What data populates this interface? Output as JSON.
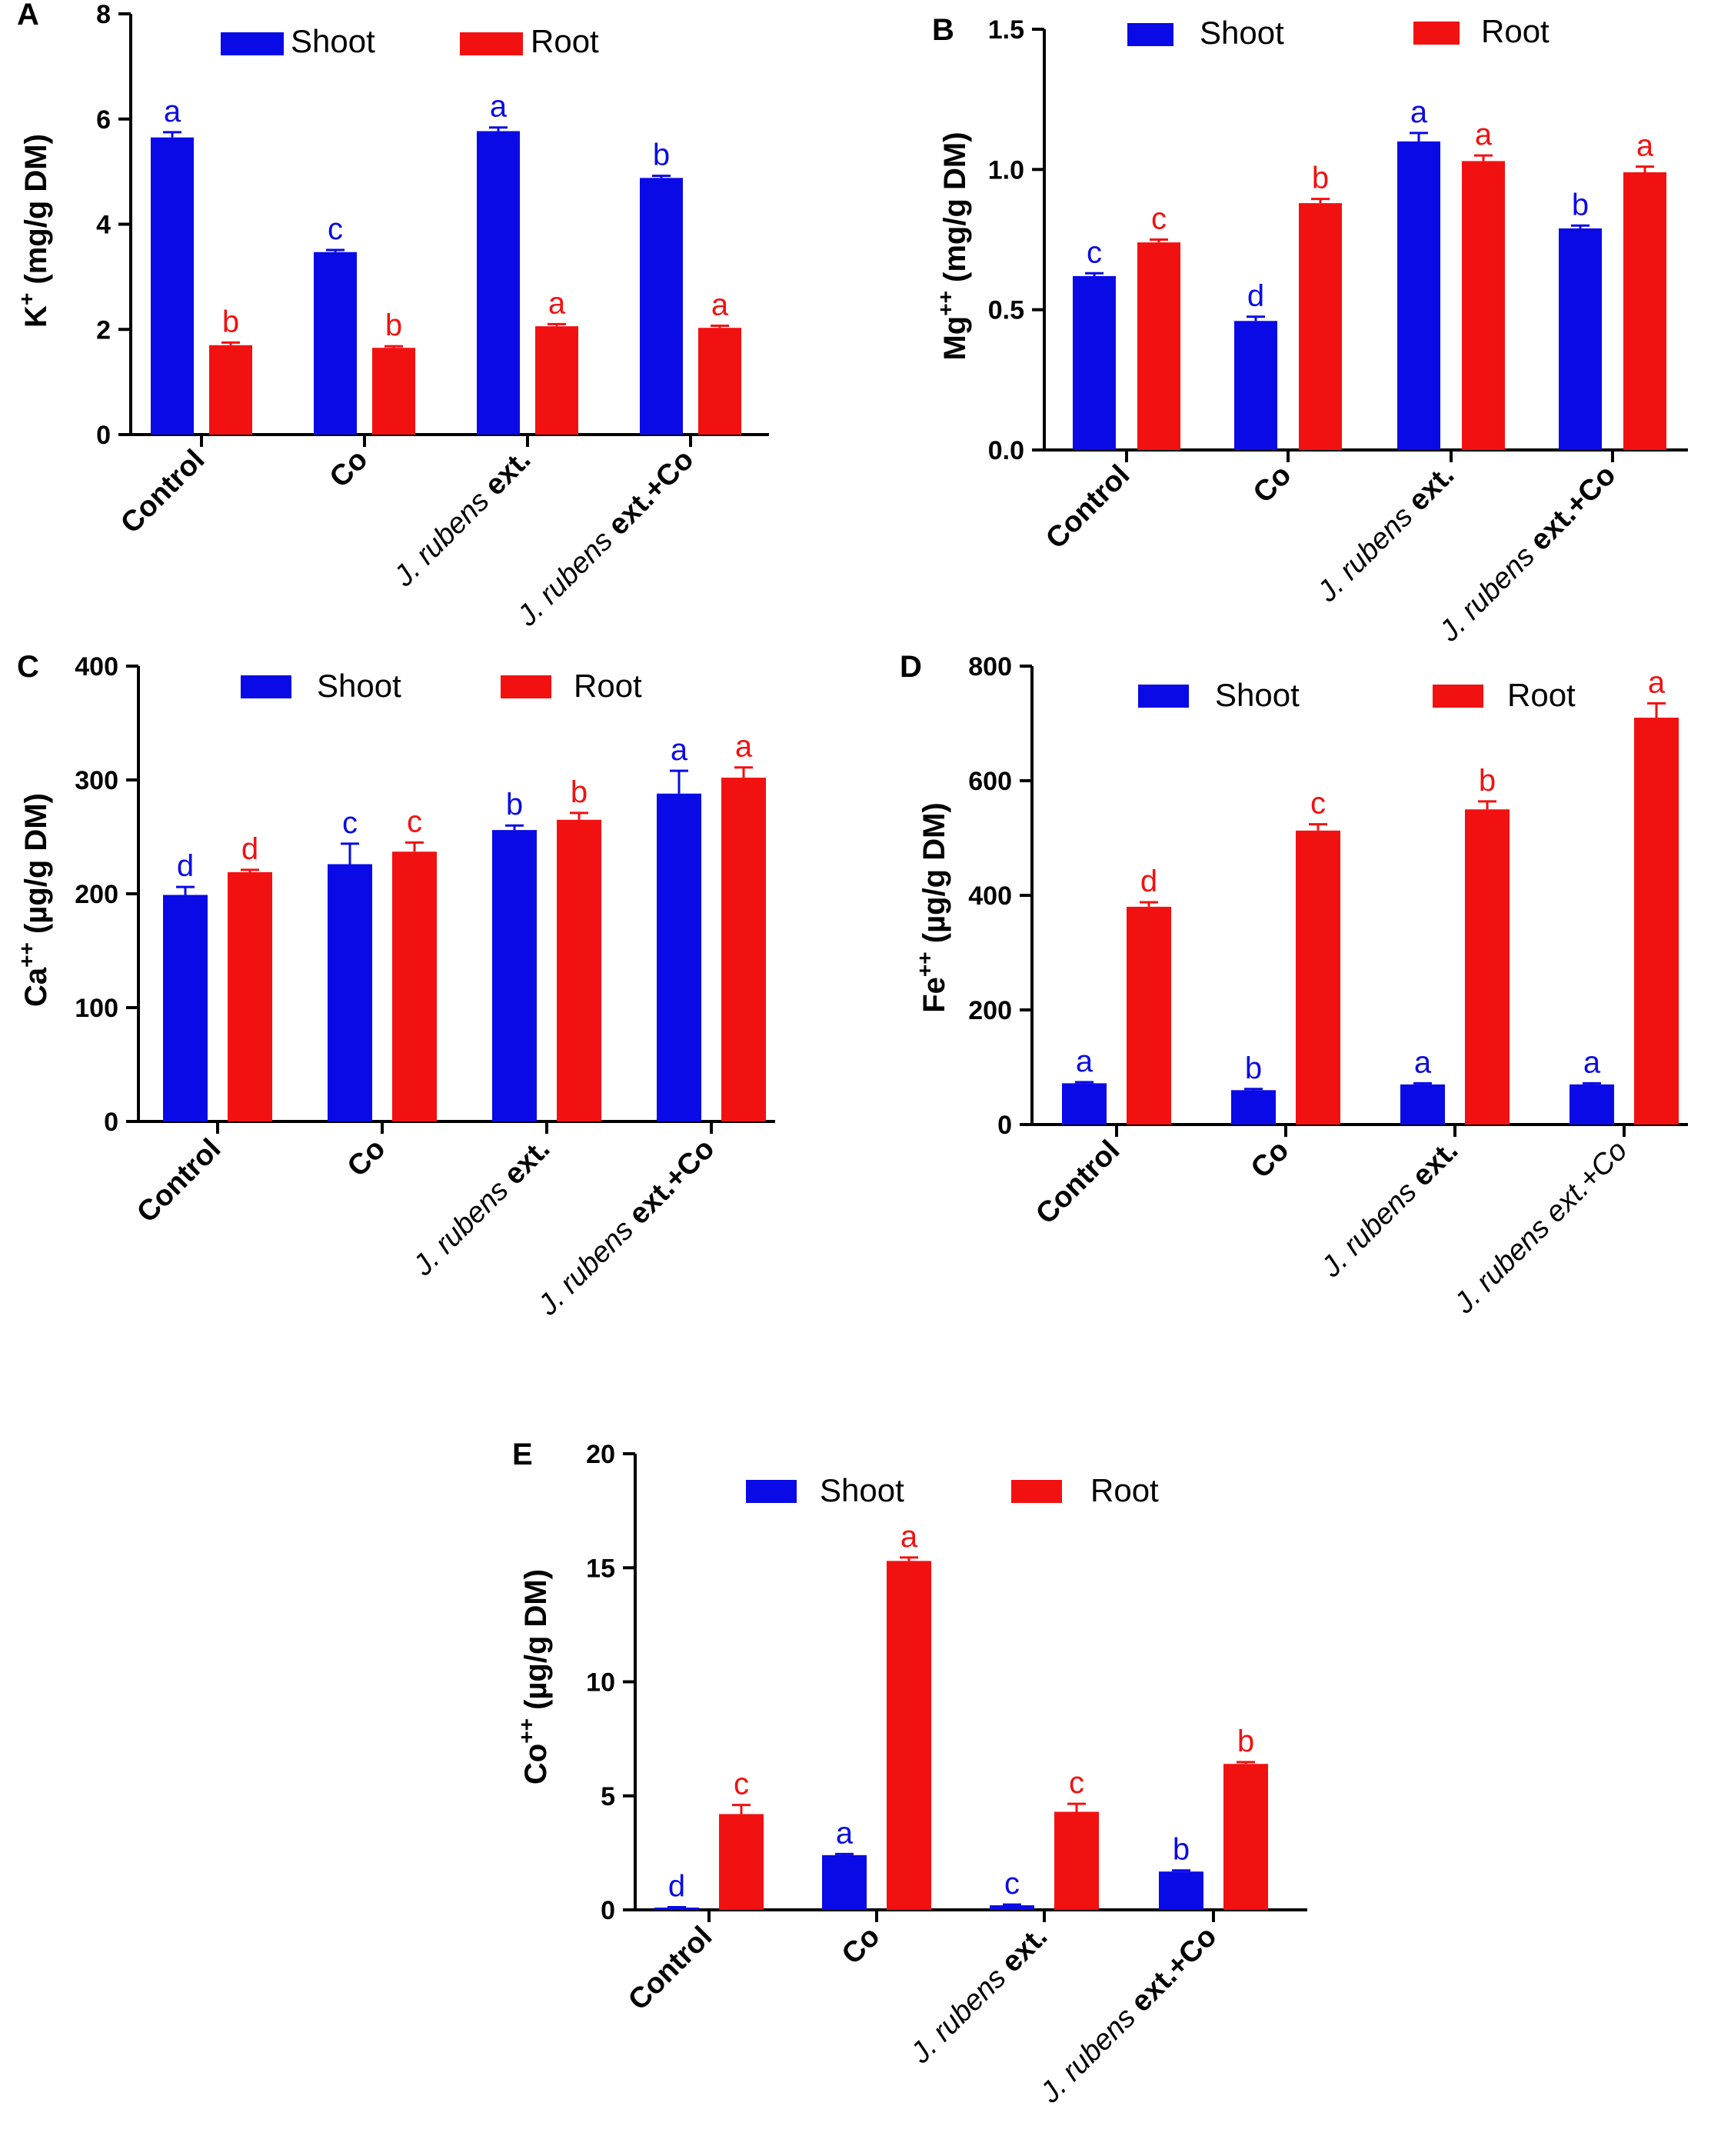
{
  "colors": {
    "shoot": "#0a0ae6",
    "root": "#f21111"
  },
  "legend": {
    "shoot": "Shoot",
    "root": "Root"
  },
  "chart_data": [
    {
      "panel": "A",
      "type": "bar",
      "ylabel_main": "K",
      "ylabel_sup": "+",
      "ylabel_unit": " (mg/g DM)",
      "ylim": [
        0,
        8
      ],
      "ticks": [
        "0",
        "2",
        "4",
        "6",
        "8"
      ],
      "tick_values": [
        0,
        2,
        4,
        6,
        8
      ],
      "categories": [
        {
          "italic": "",
          "bold": "Control"
        },
        {
          "italic": "",
          "bold": "Co"
        },
        {
          "italic": "J. rubens ",
          "bold": "ext."
        },
        {
          "italic": "J. rubens ",
          "bold": "ext.+Co"
        }
      ],
      "series": [
        {
          "name": "Shoot",
          "values": [
            5.65,
            3.47,
            5.77,
            4.88
          ],
          "errors": [
            0.1,
            0.04,
            0.07,
            0.04
          ],
          "letters": [
            "a",
            "c",
            "a",
            "b"
          ]
        },
        {
          "name": "Root",
          "values": [
            1.7,
            1.65,
            2.06,
            2.03
          ],
          "errors": [
            0.05,
            0.03,
            0.04,
            0.04
          ],
          "letters": [
            "b",
            "b",
            "a",
            "a"
          ]
        }
      ]
    },
    {
      "panel": "B",
      "type": "bar",
      "ylabel_main": "Mg",
      "ylabel_sup": "++",
      "ylabel_unit": " (mg/g DM)",
      "ylim": [
        0,
        1.5
      ],
      "ticks": [
        "0.0",
        "0.5",
        "1.0",
        "1.5"
      ],
      "tick_values": [
        0,
        0.5,
        1.0,
        1.5
      ],
      "categories": [
        {
          "italic": "",
          "bold": "Control"
        },
        {
          "italic": "",
          "bold": "Co"
        },
        {
          "italic": "J. rubens ",
          "bold": "ext."
        },
        {
          "italic": "J. rubens ",
          "bold": "ext.+Co"
        }
      ],
      "series": [
        {
          "name": "Shoot",
          "values": [
            0.62,
            0.46,
            1.1,
            0.79
          ],
          "errors": [
            0.01,
            0.015,
            0.03,
            0.01
          ],
          "letters": [
            "c",
            "d",
            "a",
            "b"
          ]
        },
        {
          "name": "Root",
          "values": [
            0.74,
            0.88,
            1.03,
            0.99
          ],
          "errors": [
            0.01,
            0.015,
            0.02,
            0.02
          ],
          "letters": [
            "c",
            "b",
            "a",
            "a"
          ]
        }
      ]
    },
    {
      "panel": "C",
      "type": "bar",
      "ylabel_main": "Ca",
      "ylabel_sup": "++",
      "ylabel_unit": " (µg/g DM)",
      "ylim": [
        0,
        400
      ],
      "ticks": [
        "0",
        "100",
        "200",
        "300",
        "400"
      ],
      "tick_values": [
        0,
        100,
        200,
        300,
        400
      ],
      "categories": [
        {
          "italic": "",
          "bold": "Control"
        },
        {
          "italic": "",
          "bold": "Co"
        },
        {
          "italic": "J. rubens ",
          "bold": "ext."
        },
        {
          "italic": "J. rubens ",
          "bold": "ext.+Co"
        }
      ],
      "series": [
        {
          "name": "Shoot",
          "values": [
            199,
            226,
            256,
            288
          ],
          "errors": [
            7,
            18,
            4,
            20
          ],
          "letters": [
            "d",
            "c",
            "b",
            "a"
          ]
        },
        {
          "name": "Root",
          "values": [
            219,
            237,
            265,
            302
          ],
          "errors": [
            2,
            8,
            6,
            9
          ],
          "letters": [
            "d",
            "c",
            "b",
            "a"
          ]
        }
      ]
    },
    {
      "panel": "D",
      "type": "bar",
      "ylabel_main": "Fe",
      "ylabel_sup": "++",
      "ylabel_unit": " (µg/g DM)",
      "ylim": [
        0,
        800
      ],
      "ticks": [
        "0",
        "200",
        "400",
        "600",
        "800"
      ],
      "tick_values": [
        0,
        200,
        400,
        600,
        800
      ],
      "categories": [
        {
          "italic": "",
          "bold": "Control"
        },
        {
          "italic": "",
          "bold": "Co"
        },
        {
          "italic": "J. rubens ",
          "bold": "ext."
        },
        {
          "italic": "J. rubens ext.+Co",
          "bold": ""
        }
      ],
      "series": [
        {
          "name": "Shoot",
          "values": [
            72,
            60,
            70,
            70
          ],
          "errors": [
            2,
            2,
            2,
            2
          ],
          "letters": [
            "a",
            "b",
            "a",
            "a"
          ]
        },
        {
          "name": "Root",
          "values": [
            380,
            513,
            550,
            710
          ],
          "errors": [
            8,
            11,
            14,
            25
          ],
          "letters": [
            "d",
            "c",
            "b",
            "a"
          ]
        }
      ]
    },
    {
      "panel": "E",
      "type": "bar",
      "ylabel_main": "Co",
      "ylabel_sup": "++",
      "ylabel_unit": " (µg/g DM)",
      "ylim": [
        0,
        20
      ],
      "ticks": [
        "0",
        "5",
        "10",
        "15",
        "20"
      ],
      "tick_values": [
        0,
        5,
        10,
        15,
        20
      ],
      "categories": [
        {
          "italic": "",
          "bold": "Control"
        },
        {
          "italic": "",
          "bold": "Co"
        },
        {
          "italic": "J. rubens ",
          "bold": "ext."
        },
        {
          "italic": "J. rubens ",
          "bold": "ext.+Co"
        }
      ],
      "series": [
        {
          "name": "Shoot",
          "values": [
            0.1,
            2.4,
            0.2,
            1.68
          ],
          "errors": [
            0.02,
            0.05,
            0.03,
            0.05
          ],
          "letters": [
            "d",
            "a",
            "c",
            "b"
          ]
        },
        {
          "name": "Root",
          "values": [
            4.2,
            15.3,
            4.3,
            6.4
          ],
          "errors": [
            0.4,
            0.15,
            0.35,
            0.08
          ],
          "letters": [
            "c",
            "a",
            "c",
            "b"
          ]
        }
      ]
    }
  ]
}
